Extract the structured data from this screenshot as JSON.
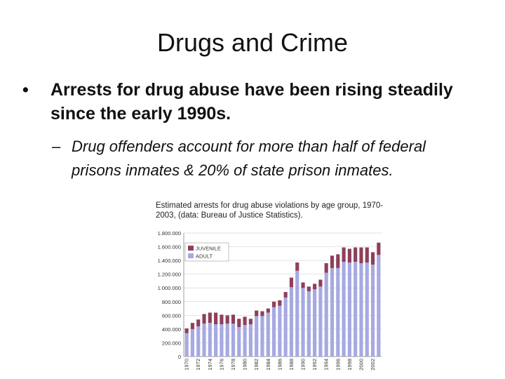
{
  "slide": {
    "title": "Drugs and Crime",
    "bullet": "Arrests for drug abuse have been rising steadily since the early 1990s.",
    "sub_bullet": "Drug offenders account for more than half of federal prisons inmates & 20% of state prison inmates."
  },
  "colors": {
    "juvenile": "#8e3f5c",
    "adult": "#a7a9e2",
    "gridline": "#d8d8d8"
  },
  "chart_data": {
    "type": "bar",
    "stacked": true,
    "title": "Estimated arrests for drug abuse violations by age group, 1970-2003, (data: Bureau of Justice Statistics).",
    "xlabel": "",
    "ylabel": "",
    "ylim": [
      0,
      1800000
    ],
    "yticks": [
      "0",
      "200.000",
      "400.000",
      "600.000",
      "800.000",
      "1.000.000",
      "1.200.000",
      "1.400.000",
      "1.600.000",
      "1.800.000"
    ],
    "legend_position": "top-left",
    "grid": true,
    "categories": [
      "1970",
      "1971",
      "1972",
      "1973",
      "1974",
      "1975",
      "1976",
      "1977",
      "1978",
      "1979",
      "1980",
      "1981",
      "1982",
      "1983",
      "1984",
      "1985",
      "1986",
      "1987",
      "1988",
      "1989",
      "1990",
      "1991",
      "1992",
      "1993",
      "1994",
      "1995",
      "1996",
      "1997",
      "1998",
      "1999",
      "2000",
      "2001",
      "2002",
      "2003"
    ],
    "xtick_labels": [
      "1970",
      "",
      "1972",
      "",
      "1974",
      "",
      "1976",
      "",
      "1978",
      "",
      "1980",
      "",
      "1982",
      "",
      "1984",
      "",
      "1986",
      "",
      "1988",
      "",
      "1990",
      "",
      "1992",
      "",
      "1994",
      "",
      "1996",
      "",
      "1998",
      "",
      "2000",
      "",
      "2002",
      ""
    ],
    "series": [
      {
        "name": "ADULT",
        "values": [
          340000,
          400000,
          440000,
          480000,
          490000,
          470000,
          470000,
          480000,
          480000,
          430000,
          460000,
          470000,
          590000,
          590000,
          640000,
          720000,
          740000,
          860000,
          1010000,
          1250000,
          1000000,
          950000,
          980000,
          1020000,
          1220000,
          1290000,
          1290000,
          1380000,
          1370000,
          1380000,
          1360000,
          1370000,
          1340000,
          1480000
        ]
      },
      {
        "name": "JUVENILE",
        "values": [
          70000,
          90000,
          100000,
          140000,
          150000,
          170000,
          140000,
          120000,
          130000,
          120000,
          120000,
          80000,
          80000,
          70000,
          60000,
          80000,
          80000,
          80000,
          140000,
          120000,
          80000,
          70000,
          80000,
          100000,
          140000,
          180000,
          200000,
          210000,
          200000,
          210000,
          230000,
          220000,
          180000,
          180000
        ]
      }
    ]
  }
}
